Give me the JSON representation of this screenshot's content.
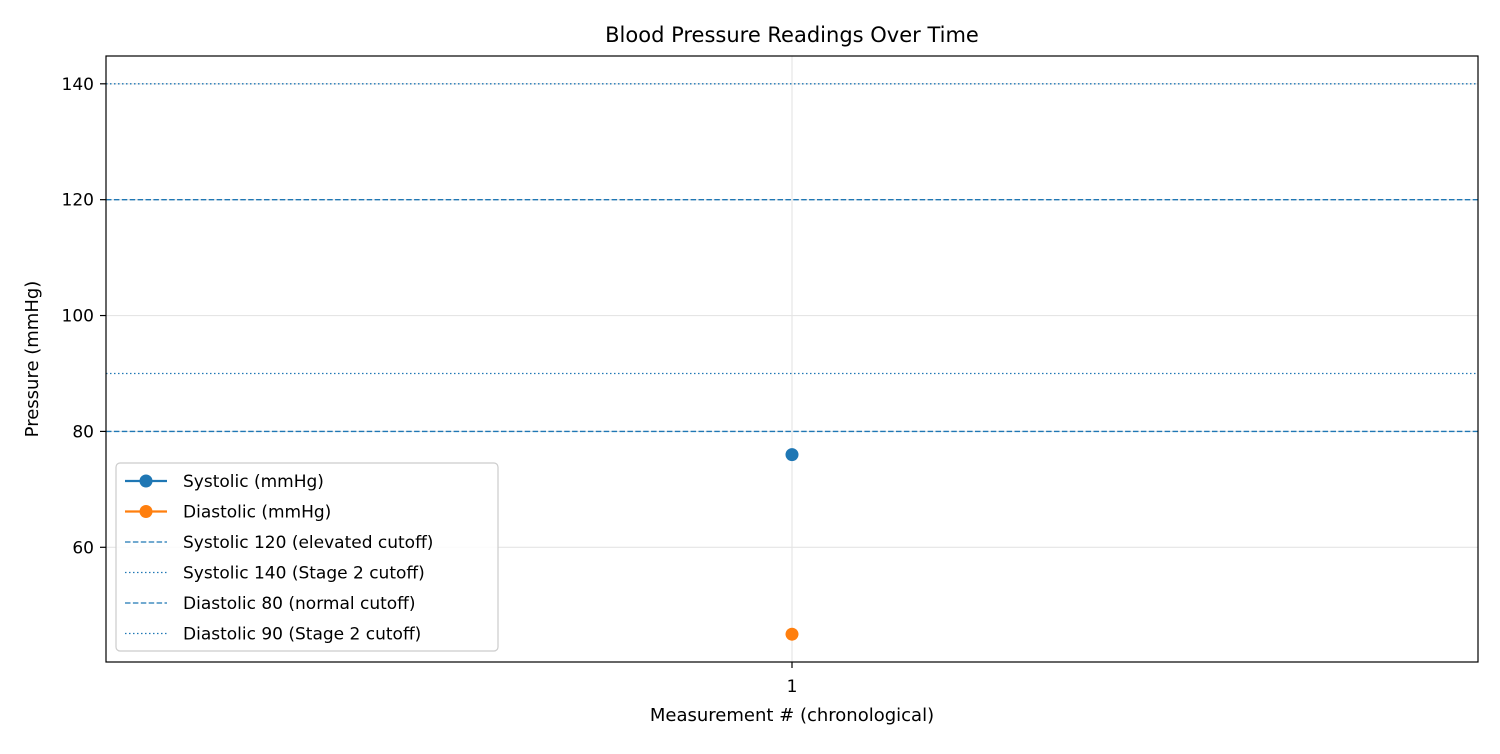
{
  "chart_data": {
    "type": "line",
    "title": "Blood Pressure Readings Over Time",
    "xlabel": "Measurement # (chronological)",
    "ylabel": "Pressure (mmHg)",
    "x": [
      1
    ],
    "x_ticks": [
      "1"
    ],
    "y_ticks": [
      60,
      80,
      100,
      120,
      140
    ],
    "ylim": [
      40.2,
      144.8
    ],
    "grid": true,
    "legend_position": "lower-left",
    "series": [
      {
        "name": "Systolic (mmHg)",
        "values": [
          76
        ],
        "color": "#1f77b4",
        "marker": "circle"
      },
      {
        "name": "Diastolic (mmHg)",
        "values": [
          45
        ],
        "color": "#ff7f0e",
        "marker": "circle"
      }
    ],
    "reference_lines": [
      {
        "name": "Systolic 120 (elevated cutoff)",
        "value": 120,
        "style": "dashed",
        "color": "#1f77b4"
      },
      {
        "name": "Systolic 140 (Stage 2 cutoff)",
        "value": 140,
        "style": "dotted",
        "color": "#1f77b4"
      },
      {
        "name": "Diastolic 80 (normal cutoff)",
        "value": 80,
        "style": "dashed",
        "color": "#1f77b4"
      },
      {
        "name": "Diastolic 90 (Stage 2 cutoff)",
        "value": 90,
        "style": "dotted",
        "color": "#1f77b4"
      }
    ]
  }
}
